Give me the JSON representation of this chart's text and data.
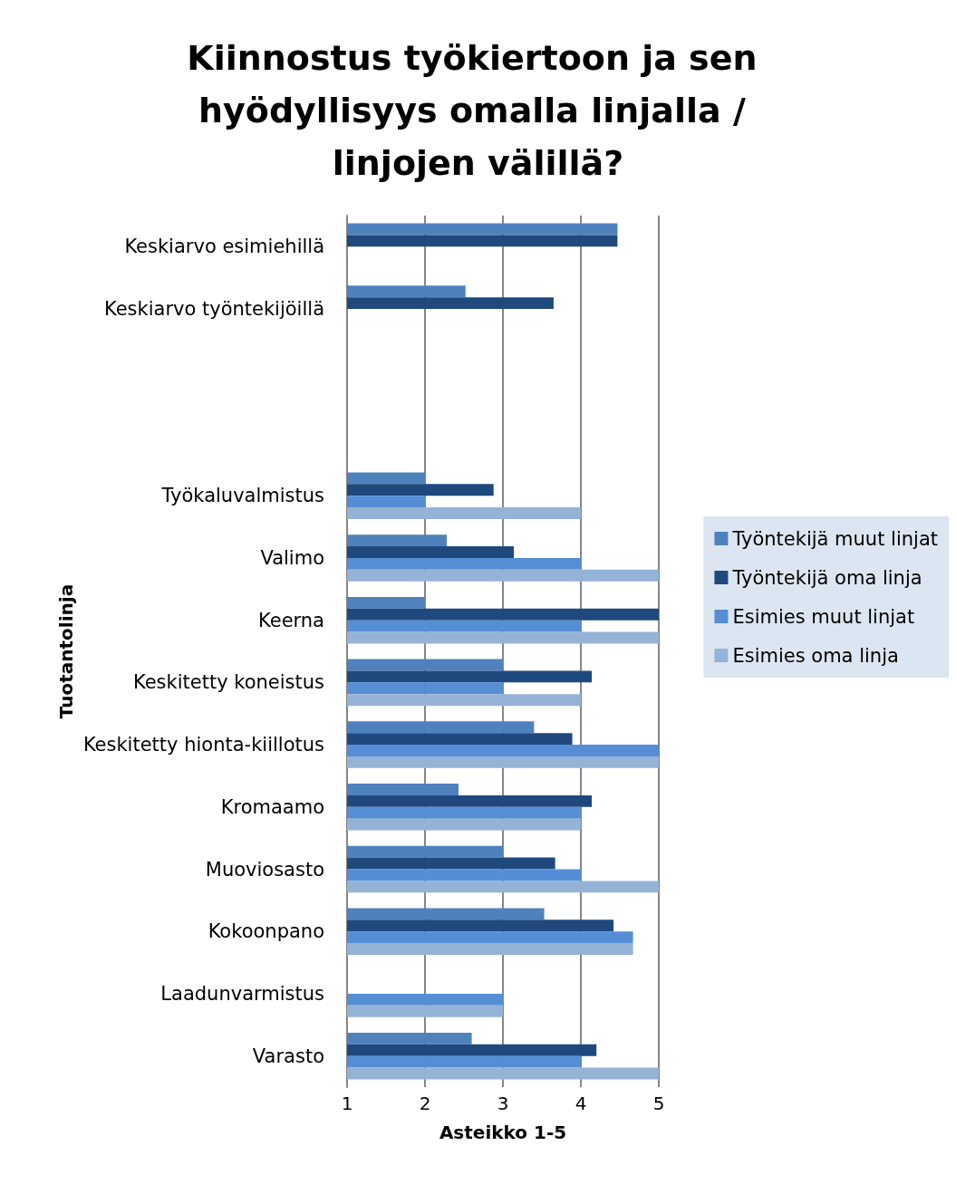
{
  "chart_data": {
    "type": "bar",
    "orientation": "horizontal",
    "title": "Kiinnostus työkiertoon ja sen hyödyllisyys omalla linjalla / linjojen välillä?",
    "xlabel": "Asteikko 1-5",
    "ylabel": "Tuotantolinja",
    "categories": [
      "Keskiarvo esimiehillä",
      "Keskiarvo työntekijöillä",
      null,
      null,
      "Työkaluvalmistus",
      "Valimo",
      "Keerna",
      "Keskitetty koneistus",
      "Keskitetty hionta-kiillotus",
      "Kromaamo",
      "Muoviosasto",
      "Kokoonpano",
      "Laadunvarmistus",
      "Varasto"
    ],
    "series": [
      {
        "name": "Työntekijä muut linjat",
        "color": "#4f81bd",
        "values": [
          4.47,
          2.52,
          null,
          null,
          2,
          2.28,
          2,
          3,
          3.4,
          2.43,
          3,
          3.53,
          null,
          2.6
        ]
      },
      {
        "name": "Työntekijä oma linja",
        "color": "#1f497d",
        "values": [
          4.47,
          3.65,
          null,
          null,
          2.88,
          3.14,
          5,
          4.14,
          3.89,
          4.14,
          3.67,
          4.42,
          null,
          4.2
        ]
      },
      {
        "name": "Esimies muut linjat",
        "color": "#558ed5",
        "values": [
          null,
          null,
          null,
          null,
          2,
          4,
          4,
          3,
          5,
          4,
          4,
          4.67,
          3,
          4
        ]
      },
      {
        "name": "Esimies oma linja",
        "color": "#95b3d7",
        "values": [
          null,
          null,
          null,
          null,
          4,
          5,
          5,
          4,
          5,
          4,
          5,
          4.67,
          3,
          5
        ]
      }
    ],
    "xlim": [
      1,
      5
    ],
    "xticks": [
      1,
      2,
      3,
      4,
      5
    ],
    "grid": "x",
    "legend": "right"
  }
}
